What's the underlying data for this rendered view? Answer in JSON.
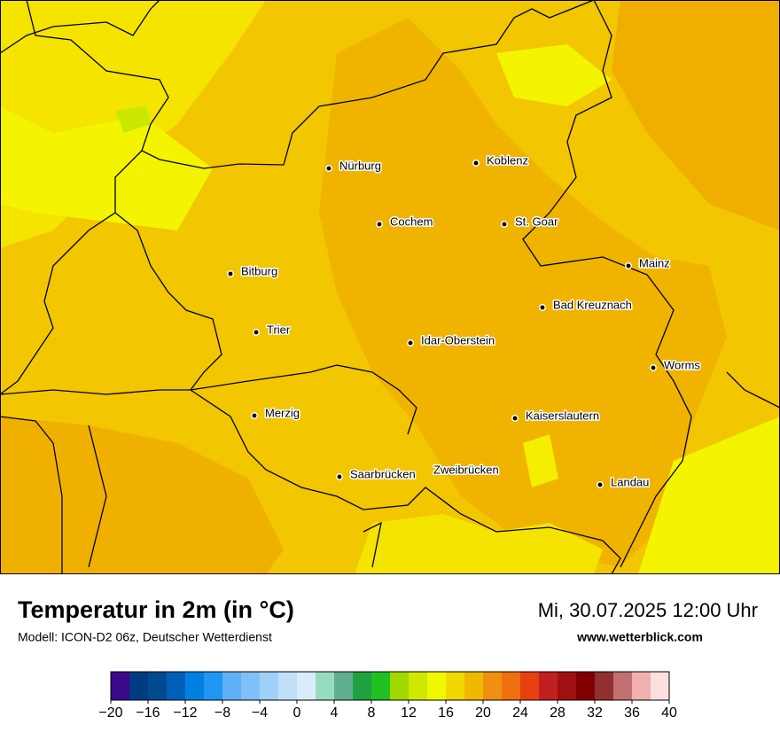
{
  "map": {
    "cities": [
      "Nürburg",
      "Koblenz",
      "Cochem",
      "St. Goar",
      "Bitburg",
      "Mainz",
      "Bad Kreuznach",
      "Trier",
      "Idar-Oberstein",
      "Worms",
      "Merzig",
      "Kaiserslautern",
      "Saarbrücken",
      "Zweibrücken",
      "Landau"
    ]
  },
  "legend": {
    "title": "Temperatur in 2m (in °C)",
    "subtitle": "Modell: ICON-D2 06z, Deutscher Wetterdienst",
    "date": "Mi, 30.07.2025 12:00 Uhr",
    "website": "www.wetterblick.com"
  },
  "colorbar": {
    "lim": [
      -20,
      40
    ],
    "colors": [
      "#3a0a8a",
      "#003c80",
      "#004a90",
      "#0060b8",
      "#0080e0",
      "#2096f0",
      "#60b0f8",
      "#80c0f8",
      "#a0d0f8",
      "#c0e0fa",
      "#d8ecfc",
      "#98dcc0",
      "#60b090",
      "#20a040",
      "#20c020",
      "#a0d800",
      "#d0e800",
      "#f0f800",
      "#f0d800",
      "#f0b800",
      "#f09010",
      "#f07010",
      "#e84010",
      "#c02020",
      "#a01010",
      "#800000",
      "#903030",
      "#c07070",
      "#f0b0b0",
      "#fce0e0"
    ],
    "ticks": [
      {
        "value": -20,
        "label": "−20"
      },
      {
        "value": -16,
        "label": "−16"
      },
      {
        "value": -12,
        "label": "−12"
      },
      {
        "value": -8,
        "label": "−8"
      },
      {
        "value": -4,
        "label": "−4"
      },
      0,
      4,
      8,
      12,
      16,
      20,
      24,
      28,
      32,
      36,
      40
    ]
  }
}
